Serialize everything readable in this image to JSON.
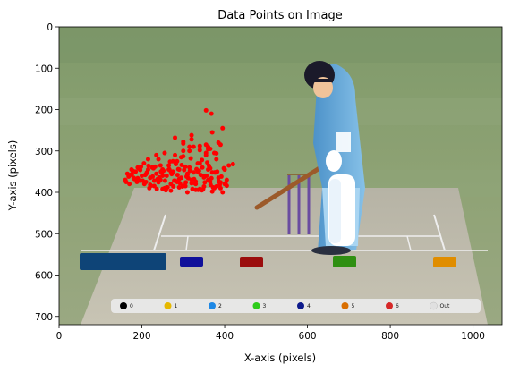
{
  "chart_data": {
    "type": "scatter",
    "title": "Data Points on Image",
    "xlabel": "X-axis (pixels)",
    "ylabel": "Y-axis (pixels)",
    "xlim": [
      0,
      1070
    ],
    "ylim": [
      720,
      0
    ],
    "y_inverted": true,
    "x_ticks": [
      0,
      200,
      400,
      600,
      800,
      1000
    ],
    "y_ticks": [
      0,
      100,
      200,
      300,
      400,
      500,
      600,
      700
    ],
    "grid": false,
    "background_image": "cricket pitch with batsman, stumps, run-zone markers and scoring legend",
    "image_legend": {
      "labels": [
        "0",
        "1",
        "2",
        "3",
        "4",
        "5",
        "6",
        "Out"
      ],
      "colors": [
        "#000000",
        "#e6b800",
        "#1e88e5",
        "#2ecc1a",
        "#0d1a8c",
        "#d96e00",
        "#d62828",
        "#e0e0e0"
      ]
    },
    "series": [
      {
        "marker_color": "#ff0000",
        "x": [
          160,
          165,
          170,
          175,
          180,
          185,
          190,
          195,
          200,
          205,
          210,
          215,
          220,
          225,
          230,
          235,
          240,
          245,
          250,
          255,
          260,
          265,
          270,
          275,
          280,
          285,
          290,
          295,
          300,
          305,
          310,
          315,
          320,
          325,
          330,
          335,
          340,
          345,
          350,
          355,
          360,
          365,
          370,
          375,
          380,
          385,
          390,
          395,
          400,
          405,
          410,
          168,
          178,
          188,
          198,
          208,
          218,
          228,
          238,
          248,
          258,
          268,
          278,
          288,
          298,
          308,
          318,
          328,
          338,
          348,
          358,
          368,
          378,
          388,
          398,
          162,
          172,
          182,
          192,
          202,
          212,
          222,
          232,
          242,
          252,
          262,
          272,
          282,
          292,
          302,
          312,
          322,
          332,
          342,
          352,
          362,
          372,
          382,
          392,
          402,
          176,
          186,
          196,
          206,
          216,
          226,
          236,
          246,
          256,
          266,
          276,
          286,
          296,
          306,
          316,
          326,
          336,
          346,
          356,
          366,
          376,
          386,
          215,
          235,
          255,
          275,
          295,
          315,
          335,
          355,
          245,
          265,
          285,
          305,
          325,
          345,
          365,
          300,
          320,
          340,
          360,
          380,
          250,
          270,
          290,
          310,
          330,
          350,
          370,
          390,
          405,
          355,
          365,
          375,
          385,
          280,
          300,
          320,
          340,
          360,
          220,
          240,
          260,
          280,
          300,
          320,
          340,
          360,
          380,
          400,
          190,
          210,
          230,
          250,
          270,
          290,
          310,
          330,
          350,
          370,
          390
        ],
        "y": [
          370,
          355,
          380,
          345,
          365,
          350,
          340,
          372,
          360,
          330,
          375,
          345,
          365,
          340,
          385,
          355,
          320,
          370,
          345,
          390,
          360,
          335,
          380,
          350,
          310,
          375,
          345,
          365,
          300,
          385,
          355,
          340,
          370,
          290,
          380,
          350,
          330,
          395,
          360,
          310,
          345,
          375,
          255,
          390,
          320,
          365,
          285,
          400,
          345,
          370,
          335,
          362,
          348,
          375,
          338,
          358,
          390,
          342,
          368,
          352,
          395,
          326,
          372,
          344,
          386,
          362,
          318,
          378,
          348,
          392,
          328,
          366,
          352,
          382,
          342,
          375,
          358,
          368,
          342,
          372,
          352,
          384,
          338,
          364,
          348,
          388,
          356,
          332,
          378,
          346,
          366,
          392,
          344,
          358,
          376,
          336,
          388,
          350,
          362,
          378,
          356,
          368,
          346,
          380,
          336,
          362,
          392,
          350,
          372,
          344,
          386,
          358,
          334,
          376,
          348,
          368,
          394,
          340,
          360,
          382,
          352,
          374,
          320,
          310,
          305,
          325,
          315,
          300,
          330,
          305,
          335,
          345,
          325,
          338,
          352,
          322,
          342,
          282,
          272,
          298,
          290,
          306,
          392,
          396,
          388,
          400,
          394,
          386,
          398,
          390,
          384,
          285,
          295,
          305,
          280,
          268,
          278,
          262,
          288,
          296,
          382,
          376,
          388,
          372,
          384,
          378,
          392,
          370,
          386,
          380,
          366,
          356,
          372,
          360,
          350,
          368,
          358,
          374,
          364,
          352,
          376
        ],
        "extra_points": {
          "x": [
            355,
            368,
            395,
            420,
            300,
            315
          ],
          "y": [
            202,
            210,
            245,
            332,
            313,
            290
          ]
        }
      }
    ]
  }
}
